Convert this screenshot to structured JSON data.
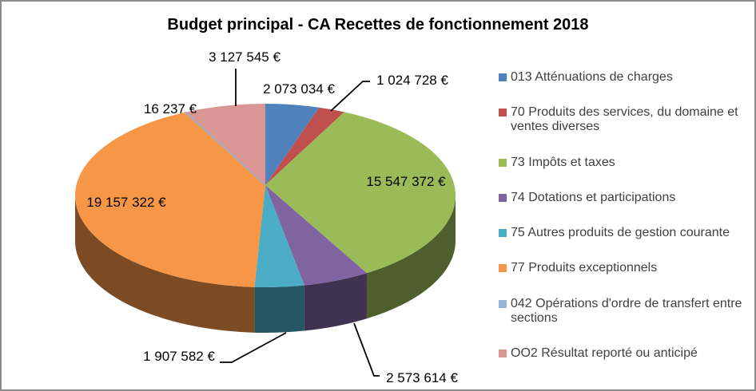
{
  "window": {
    "border_color": "#8C8C8C",
    "background": "#FFFFFF"
  },
  "chart_data": {
    "type": "pie",
    "style": "3d-pie",
    "title": "Budget principal - CA Recettes de fonctionnement 2018",
    "unit": "€",
    "total": 45427434,
    "legend_position": "right",
    "grid": false,
    "start_angle_deg": 0,
    "direction": "clockwise",
    "series": [
      {
        "label": "013 Atténuations de charges",
        "value": 2073034,
        "value_label": "2 073 034 €",
        "color": "#4F81BD"
      },
      {
        "label": "70 Produits des services, du domaine et ventes diverses",
        "value": 1024728,
        "value_label": "1 024 728 €",
        "color": "#C0504D"
      },
      {
        "label": "73 Impôts et taxes",
        "value": 15547372,
        "value_label": "15 547 372 €",
        "color": "#9BBB59"
      },
      {
        "label": "74 Dotations et participations",
        "value": 2573614,
        "value_label": "2 573 614 €",
        "color": "#8064A2"
      },
      {
        "label": "75 Autres produits de gestion courante",
        "value": 1907582,
        "value_label": "1 907 582 €",
        "color": "#4BACC6"
      },
      {
        "label": "77 Produits exceptionnels",
        "value": 19157322,
        "value_label": "19 157 322 €",
        "color": "#F79646"
      },
      {
        "label": "042 Opérations d'ordre de transfert entre sections",
        "value": 16237,
        "value_label": "16 237 €",
        "color": "#95B3D7"
      },
      {
        "label": "OO2 Résultat reporté ou anticipé",
        "value": 3127545,
        "value_label": "3 127 545 €",
        "color": "#D99694"
      }
    ]
  }
}
